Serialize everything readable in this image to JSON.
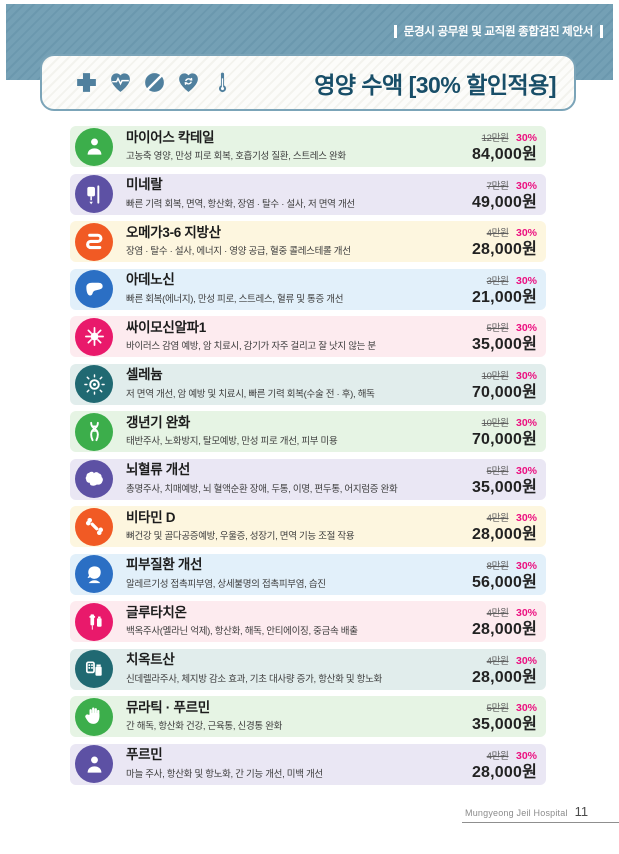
{
  "header": {
    "tag_text": "문경시 공무원 및 교직원 종합검진 제안서",
    "title": "영양 수액 [30% 할인적용]",
    "icons": [
      "medical-cross-icon",
      "heart-pulse-icon",
      "pill-icon",
      "heart-refresh-icon",
      "thermometer-icon"
    ]
  },
  "colors": {
    "banner": "#6d9bb1",
    "panel_border": "#7ba4b8",
    "title_text": "#184e68",
    "discount_accent": "#ec1080"
  },
  "items": [
    {
      "name": "마이어스 칵테일",
      "desc": "고농축 영양, 만성 피로 회복, 호흡기성 질환, 스트레스 완화",
      "original_price": "12만원",
      "discount": "30%",
      "price": "84,000원",
      "icon": "person-icon",
      "circle_color": "#3cae4b",
      "row_bg": "#e6f4e4"
    },
    {
      "name": "미네랄",
      "desc": "빠른 기력 회복, 면역, 항산화, 장염 · 탈수 · 설사, 저 면역 개선",
      "original_price": "7만원",
      "discount": "30%",
      "price": "49,000원",
      "icon": "iv-drip-icon",
      "circle_color": "#5d51a4",
      "row_bg": "#eae7f4"
    },
    {
      "name": "오메가3-6 지방산",
      "desc": "장염 · 탈수 · 설사, 에너지 · 영양 공급, 혈중 콜레스테롤 개선",
      "original_price": "4만원",
      "discount": "30%",
      "price": "28,000원",
      "icon": "intestine-icon",
      "circle_color": "#f15a24",
      "row_bg": "#fdf6df"
    },
    {
      "name": "아데노신",
      "desc": "빠른 회복(에너지), 만성 피로, 스트레스, 혈류 및 통증 개선",
      "original_price": "3만원",
      "discount": "30%",
      "price": "21,000원",
      "icon": "liver-icon",
      "circle_color": "#2b6fc4",
      "row_bg": "#e2f0fa"
    },
    {
      "name": "싸이모신알파1",
      "desc": "바이러스 감염 예방, 암 치료시, 감기가 자주 걸리고 잘 낫지 않는 분",
      "original_price": "5만원",
      "discount": "30%",
      "price": "35,000원",
      "icon": "virus-icon",
      "circle_color": "#e9196b",
      "row_bg": "#fdebef"
    },
    {
      "name": "셀레늄",
      "desc": "저 면역 개선, 암 예방 및 치료시, 빠른 기력 회복(수술 전 · 후), 해독",
      "original_price": "10만원",
      "discount": "30%",
      "price": "70,000원",
      "icon": "cell-icon",
      "circle_color": "#206972",
      "row_bg": "#e1edec"
    },
    {
      "name": "갱년기 완화",
      "desc": "태반주사, 노화방지, 탈모예방, 만성 피로 개선, 피부 미용",
      "original_price": "10만원",
      "discount": "30%",
      "price": "70,000원",
      "icon": "dna-icon",
      "circle_color": "#3cae4b",
      "row_bg": "#e6f4e4"
    },
    {
      "name": "뇌혈류 개선",
      "desc": "총명주사, 치매예방, 뇌 혈액순환 장애, 두통, 이명, 편두통, 어지럼증 완화",
      "original_price": "5만원",
      "discount": "30%",
      "price": "35,000원",
      "icon": "brain-icon",
      "circle_color": "#5d51a4",
      "row_bg": "#eae7f4"
    },
    {
      "name": "비타민 D",
      "desc": "뼈건강 및 골다공증예방, 우울증, 성장기, 면역 기능 조절 작용",
      "original_price": "4만원",
      "discount": "30%",
      "price": "28,000원",
      "icon": "bone-joint-icon",
      "circle_color": "#f15a24",
      "row_bg": "#fdf6df"
    },
    {
      "name": "피부질환 개선",
      "desc": "알레르기성 접촉피부염, 상세불명의 접촉피부염, 습진",
      "original_price": "8만원",
      "discount": "30%",
      "price": "56,000원",
      "icon": "face-icon",
      "circle_color": "#2b6fc4",
      "row_bg": "#e2f0fa"
    },
    {
      "name": "글루타치온",
      "desc": "백옥주사(멜라닌 억제), 항산화, 해독, 안티에이징, 중금속 배출",
      "original_price": "4만원",
      "discount": "30%",
      "price": "28,000원",
      "icon": "syringe-icon",
      "circle_color": "#e9196b",
      "row_bg": "#fdebef"
    },
    {
      "name": "치옥트산",
      "desc": "신데렐라주사, 체지방 감소 효과, 기초 대사량 증가, 항산화 및 항노화",
      "original_price": "4만원",
      "discount": "30%",
      "price": "28,000원",
      "icon": "pills-icon",
      "circle_color": "#206972",
      "row_bg": "#e1edec"
    },
    {
      "name": "뮤라틱 · 푸르민",
      "desc": "간 해독, 항산화 건강, 근육통, 신경통 완화",
      "original_price": "5만원",
      "discount": "30%",
      "price": "35,000원",
      "icon": "hand-icon",
      "circle_color": "#3cae4b",
      "row_bg": "#e6f4e4"
    },
    {
      "name": "푸르민",
      "desc": "마늘 주사, 항산화 및 항노화, 간 기능 개선, 미백 개선",
      "original_price": "4만원",
      "discount": "30%",
      "price": "28,000원",
      "icon": "person-icon",
      "circle_color": "#5d51a4",
      "row_bg": "#eae7f4"
    }
  ],
  "footer": {
    "hospital": "Mungyeong Jeil Hospital",
    "page_number": "11"
  }
}
